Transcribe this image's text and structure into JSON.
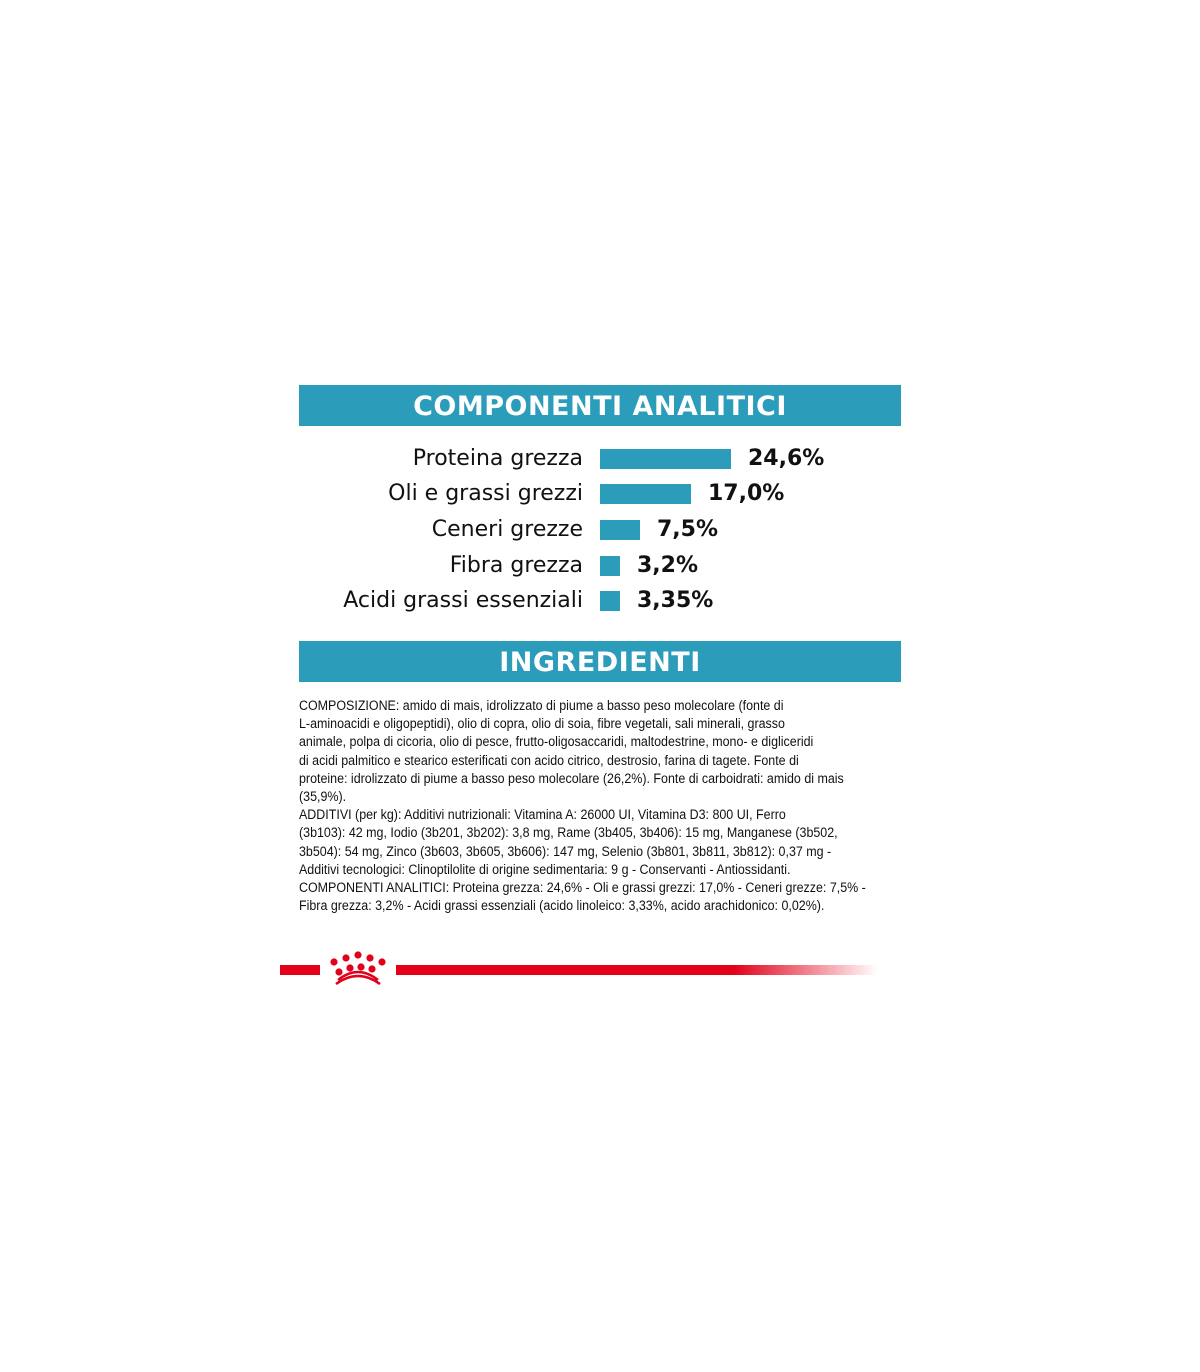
{
  "chart_data": {
    "type": "bar",
    "title": "COMPONENTI ANALITICI",
    "categories": [
      "Proteina grezza",
      "Oli e grassi grezzi",
      "Ceneri grezze",
      "Fibra grezza",
      "Acidi grassi essenziali"
    ],
    "values": [
      24.6,
      17.0,
      7.5,
      3.2,
      3.35
    ],
    "value_labels": [
      "24,6%",
      "17,0%",
      "7,5%",
      "3,2%",
      "3,35%"
    ],
    "orientation": "horizontal",
    "grid": false,
    "bar_color": "#2b9cb9"
  },
  "ingredients": {
    "title": "INGREDIENTI",
    "lines": [
      "COMPOSIZIONE: amido di mais, idrolizzato di piume a basso peso molecolare (fonte di",
      "L-aminoacidi e oligopeptidi), olio di copra, olio di soia, fibre vegetali, sali minerali, grasso",
      "animale, polpa di cicoria, olio di pesce, frutto-oligosaccaridi, maltodestrine, mono- e digliceridi",
      "di acidi palmitico e stearico esterificati con acido citrico, destrosio, farina di tagete. Fonte di",
      "proteine: idrolizzato di piume a basso peso molecolare (26,2%). Fonte di carboidrati: amido di mais",
      "(35,9%).",
      "ADDITIVI (per kg): Additivi nutrizionali: Vitamina A: 26000 UI, Vitamina D3: 800 UI, Ferro",
      "(3b103): 42 mg, Iodio (3b201, 3b202): 3,8 mg, Rame (3b405, 3b406): 15 mg, Manganese (3b502,",
      "3b504): 54 mg, Zinco (3b603, 3b605, 3b606): 147 mg, Selenio (3b801, 3b811, 3b812): 0,37 mg -",
      "Additivi tecnologici: Clinoptilolite di origine sedimentaria: 9 g - Conservanti - Antiossidanti.",
      "COMPONENTI ANALITICI: Proteina grezza: 24,6% - Oli e grassi grezzi: 17,0% - Ceneri grezze: 7,5% -",
      "Fibra grezza: 3,2% - Acidi grassi essenziali (acido linoleico: 3,33%, acido arachidonico: 0,02%)."
    ]
  },
  "colors": {
    "accent": "#2b9cb9",
    "brand_red": "#e2001a"
  },
  "logo": {
    "icon": "royal-canin-crown-icon"
  }
}
